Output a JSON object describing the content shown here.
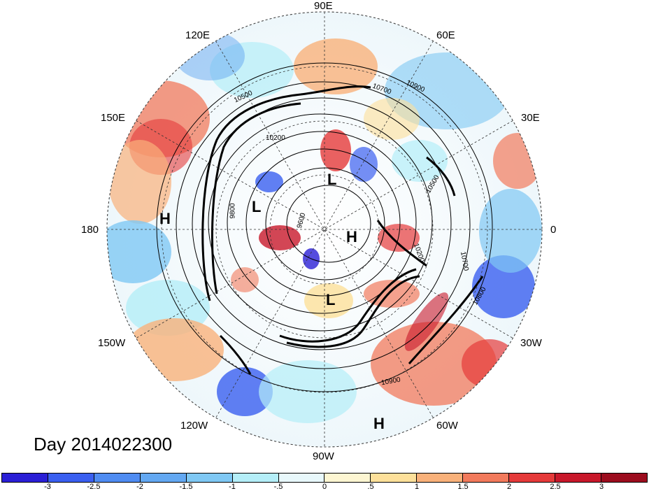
{
  "title": "Day 2014022300",
  "longitude_labels": {
    "top": "90E",
    "upper_left": "120E",
    "upper_right": "60E",
    "left_upper": "150E",
    "right_upper": "30E",
    "left": "180",
    "right": "0",
    "left_lower": "150W",
    "right_lower": "30W",
    "lower_left": "120W",
    "lower_right": "60W",
    "bottom": "90W"
  },
  "pressure_centers": {
    "h_west": "H",
    "l_siberia": "L",
    "l_north": "L",
    "h_pole": "H",
    "l_canada": "L",
    "h_atlantic": "H"
  },
  "contour_labels": {
    "c1": "10500",
    "c2": "10200",
    "c3": "10700",
    "c4": "10900",
    "c5": "10500",
    "c6": "9600",
    "c7": "9800",
    "c8": "10200",
    "c9": "10700",
    "c10": "10800",
    "c11": "10900"
  },
  "colorbar": {
    "ticks": [
      "-3",
      "-2.5",
      "-2",
      "-1.5",
      "-1",
      "-.5",
      "0",
      ".5",
      "1",
      "1.5",
      "2",
      "2.5",
      "3"
    ],
    "colors": [
      "#2a1fd6",
      "#3a5ff0",
      "#4f8cf2",
      "#63a8f2",
      "#7fc8f4",
      "#b4eef8",
      "#e8f8fb",
      "#fdf6d2",
      "#fde09a",
      "#f9b17a",
      "#f27a5c",
      "#e53a3a",
      "#c8182a",
      "#9c0d1e"
    ]
  }
}
